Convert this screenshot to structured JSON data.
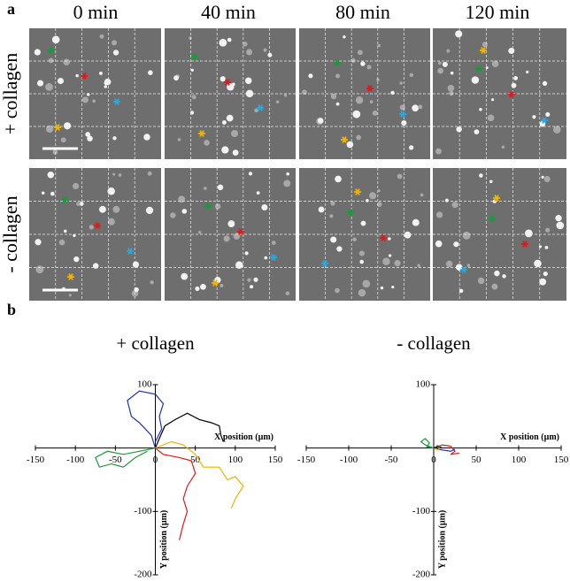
{
  "panel_a": {
    "label": "a",
    "columns": [
      "0 min",
      "40 min",
      "80 min",
      "120 min"
    ],
    "rows": [
      "+ collagen",
      "- collagen"
    ]
  },
  "panel_b": {
    "label": "b"
  },
  "chart_data": [
    {
      "type": "line",
      "title": "+ collagen",
      "xlabel": "X position (µm)",
      "ylabel": "Y position (µm)",
      "xlim": [
        -150,
        150
      ],
      "ylim": [
        -200,
        100
      ],
      "xticks": [
        -150,
        -100,
        -50,
        0,
        50,
        100,
        150
      ],
      "yticks": [
        -200,
        -100,
        100
      ],
      "series": [
        {
          "color": "#000000",
          "x": [
            0,
            5,
            12,
            25,
            40,
            55,
            70,
            80,
            82,
            85
          ],
          "values": [
            0,
            15,
            35,
            45,
            55,
            45,
            40,
            35,
            20,
            10
          ]
        },
        {
          "color": "#1f2fbf",
          "x": [
            0,
            -5,
            -20,
            -30,
            -35,
            -20,
            0,
            10,
            5,
            8,
            0
          ],
          "values": [
            0,
            20,
            40,
            50,
            75,
            90,
            85,
            70,
            50,
            30,
            10
          ]
        },
        {
          "color": "#1a9a3a",
          "x": [
            0,
            -20,
            -40,
            -60,
            -75,
            -70,
            -55,
            -40,
            -25,
            -10
          ],
          "values": [
            0,
            -5,
            -10,
            -5,
            -15,
            -30,
            -25,
            -30,
            -15,
            -5
          ]
        },
        {
          "color": "#f0b400",
          "x": [
            0,
            20,
            35,
            50,
            60,
            80,
            90,
            100,
            110,
            100,
            95
          ],
          "values": [
            0,
            10,
            5,
            -10,
            -30,
            -30,
            -50,
            -45,
            -60,
            -80,
            -95
          ]
        },
        {
          "color": "#e01a1a",
          "x": [
            0,
            10,
            30,
            45,
            50,
            40,
            35,
            40,
            35,
            30
          ],
          "values": [
            0,
            -10,
            -15,
            -20,
            -40,
            -60,
            -80,
            -100,
            -120,
            -145
          ]
        }
      ]
    },
    {
      "type": "line",
      "title": "- collagen",
      "xlabel": "X position (µm)",
      "ylabel": "Y position (µm)",
      "xlim": [
        -150,
        150
      ],
      "ylim": [
        -200,
        100
      ],
      "xticks": [
        -150,
        -100,
        -50,
        0,
        50,
        100,
        150
      ],
      "yticks": [
        -200,
        -100,
        100
      ],
      "series": [
        {
          "color": "#1a9a3a",
          "x": [
            0,
            -10,
            -15,
            -10,
            -5,
            -8,
            0
          ],
          "values": [
            0,
            5,
            10,
            15,
            8,
            2,
            0
          ]
        },
        {
          "color": "#e01a1a",
          "x": [
            0,
            10,
            20,
            25,
            20,
            30
          ],
          "values": [
            0,
            5,
            3,
            -5,
            -10,
            -8
          ]
        },
        {
          "color": "#1f2fbf",
          "x": [
            0,
            10,
            20,
            25
          ],
          "values": [
            0,
            -3,
            -5,
            -2
          ]
        },
        {
          "color": "#f0b400",
          "x": [
            0,
            5,
            8,
            3
          ],
          "values": [
            0,
            -3,
            2,
            5
          ]
        },
        {
          "color": "#000000",
          "x": [
            0,
            5,
            10
          ],
          "values": [
            0,
            3,
            0
          ]
        }
      ]
    }
  ]
}
